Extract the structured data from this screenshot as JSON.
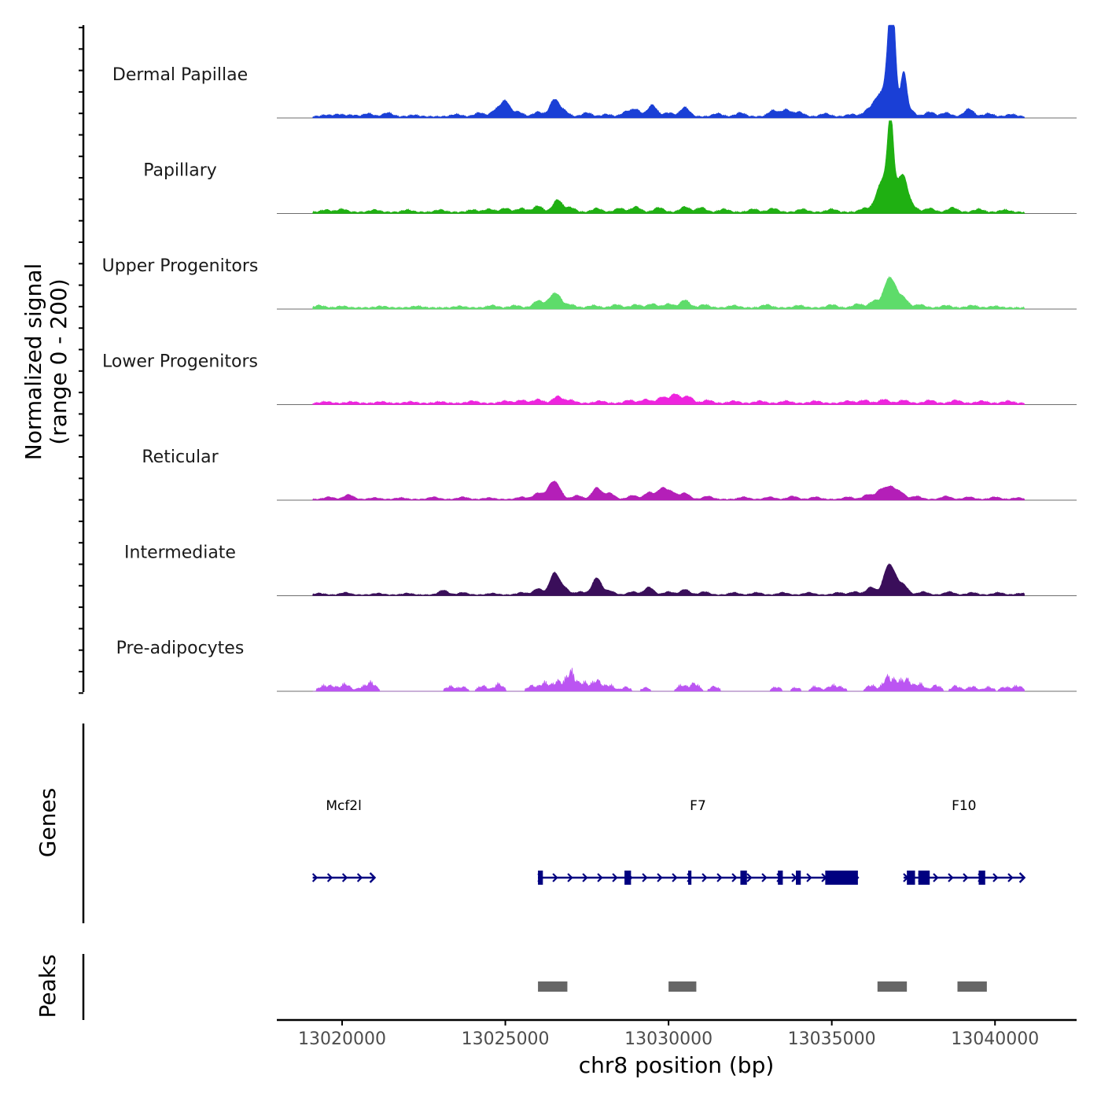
{
  "chart_data": {
    "type": "area",
    "title": "",
    "xlabel": "chr8 position (bp)",
    "ylabel": "Normalized signal\n(range 0 - 200)",
    "ylabel_lines": [
      "Normalized signal",
      "(range 0 - 200)"
    ],
    "xlim": [
      13018000,
      13042500
    ],
    "ylim": [
      0,
      200
    ],
    "x_ticks": [
      13020000,
      13025000,
      13030000,
      13035000,
      13040000
    ],
    "x_tick_labels": [
      "13020000",
      "13025000",
      "13030000",
      "13035000",
      "13040000"
    ],
    "signal_extent": [
      13019100,
      13040900
    ],
    "tracks": [
      {
        "name": "Dermal Papillae",
        "color": "#1a3fd6",
        "baseline": 3,
        "peaks": [
          [
            13019500,
            2
          ],
          [
            13019900,
            3
          ],
          [
            13020300,
            2
          ],
          [
            13020800,
            4
          ],
          [
            13021400,
            5
          ],
          [
            13022200,
            2
          ],
          [
            13023500,
            3
          ],
          [
            13024200,
            5
          ],
          [
            13024700,
            8
          ],
          [
            13025000,
            20
          ],
          [
            13025400,
            6
          ],
          [
            13026000,
            6
          ],
          [
            13026500,
            22
          ],
          [
            13026800,
            7
          ],
          [
            13027500,
            5
          ],
          [
            13028100,
            3
          ],
          [
            13028700,
            6
          ],
          [
            13029000,
            9
          ],
          [
            13029500,
            15
          ],
          [
            13030000,
            5
          ],
          [
            13030500,
            12
          ],
          [
            13031500,
            4
          ],
          [
            13032200,
            5
          ],
          [
            13033200,
            8
          ],
          [
            13033600,
            9
          ],
          [
            13034000,
            6
          ],
          [
            13034800,
            4
          ],
          [
            13035600,
            3
          ],
          [
            13036100,
            8
          ],
          [
            13036400,
            22
          ],
          [
            13036700,
            40
          ],
          [
            13036800,
            84
          ],
          [
            13036900,
            76
          ],
          [
            13037200,
            56
          ],
          [
            13037400,
            8
          ],
          [
            13038000,
            6
          ],
          [
            13038500,
            5
          ],
          [
            13039200,
            10
          ],
          [
            13039800,
            4
          ],
          [
            13040500,
            3
          ]
        ]
      },
      {
        "name": "Papillary",
        "color": "#1fb012",
        "baseline": 3,
        "peaks": [
          [
            13019500,
            3
          ],
          [
            13020000,
            4
          ],
          [
            13021000,
            3
          ],
          [
            13022000,
            3
          ],
          [
            13023000,
            3
          ],
          [
            13024000,
            3
          ],
          [
            13024500,
            4
          ],
          [
            13025000,
            5
          ],
          [
            13025500,
            5
          ],
          [
            13026000,
            8
          ],
          [
            13026600,
            16
          ],
          [
            13027000,
            6
          ],
          [
            13027800,
            5
          ],
          [
            13028500,
            5
          ],
          [
            13029000,
            7
          ],
          [
            13029700,
            6
          ],
          [
            13030500,
            7
          ],
          [
            13031000,
            6
          ],
          [
            13031700,
            4
          ],
          [
            13032600,
            4
          ],
          [
            13033200,
            5
          ],
          [
            13034100,
            4
          ],
          [
            13035000,
            4
          ],
          [
            13036000,
            5
          ],
          [
            13036400,
            16
          ],
          [
            13036600,
            35
          ],
          [
            13036800,
            110
          ],
          [
            13037000,
            20
          ],
          [
            13037200,
            40
          ],
          [
            13037500,
            6
          ],
          [
            13038000,
            5
          ],
          [
            13038700,
            6
          ],
          [
            13039500,
            4
          ],
          [
            13040300,
            3
          ]
        ]
      },
      {
        "name": "Upper Progenitors",
        "color": "#5edc6a",
        "baseline": 3,
        "peaks": [
          [
            13019300,
            3
          ],
          [
            13020000,
            2
          ],
          [
            13021200,
            2
          ],
          [
            13022300,
            2
          ],
          [
            13023600,
            2
          ],
          [
            13024600,
            3
          ],
          [
            13025300,
            3
          ],
          [
            13026000,
            9
          ],
          [
            13026400,
            10
          ],
          [
            13026600,
            14
          ],
          [
            13027000,
            4
          ],
          [
            13027700,
            3
          ],
          [
            13028400,
            4
          ],
          [
            13029000,
            4
          ],
          [
            13029500,
            5
          ],
          [
            13030000,
            5
          ],
          [
            13030500,
            10
          ],
          [
            13031100,
            4
          ],
          [
            13032000,
            3
          ],
          [
            13033000,
            4
          ],
          [
            13034000,
            3
          ],
          [
            13035000,
            4
          ],
          [
            13035800,
            5
          ],
          [
            13036300,
            9
          ],
          [
            13036700,
            28
          ],
          [
            13036900,
            22
          ],
          [
            13037200,
            12
          ],
          [
            13037700,
            4
          ],
          [
            13038500,
            3
          ],
          [
            13039300,
            3
          ],
          [
            13040000,
            2
          ]
        ]
      },
      {
        "name": "Lower Progenitors",
        "color": "#ee24de",
        "baseline": 3,
        "peaks": [
          [
            13019500,
            2
          ],
          [
            13020300,
            2
          ],
          [
            13021200,
            2
          ],
          [
            13022100,
            2
          ],
          [
            13023000,
            2
          ],
          [
            13024000,
            3
          ],
          [
            13025000,
            3
          ],
          [
            13025500,
            4
          ],
          [
            13026000,
            5
          ],
          [
            13026600,
            9
          ],
          [
            13027000,
            4
          ],
          [
            13027900,
            3
          ],
          [
            13028800,
            4
          ],
          [
            13029300,
            5
          ],
          [
            13029800,
            8
          ],
          [
            13030200,
            12
          ],
          [
            13030600,
            9
          ],
          [
            13031200,
            4
          ],
          [
            13032000,
            3
          ],
          [
            13032800,
            3
          ],
          [
            13033600,
            3
          ],
          [
            13034500,
            3
          ],
          [
            13035500,
            3
          ],
          [
            13036000,
            4
          ],
          [
            13036600,
            5
          ],
          [
            13037200,
            4
          ],
          [
            13038000,
            4
          ],
          [
            13038800,
            4
          ],
          [
            13039600,
            3
          ],
          [
            13040400,
            3
          ]
        ]
      },
      {
        "name": "Reticular",
        "color": "#b41fb8",
        "baseline": 2,
        "peaks": [
          [
            13019600,
            3
          ],
          [
            13020200,
            6
          ],
          [
            13021000,
            2
          ],
          [
            13021800,
            2
          ],
          [
            13022800,
            3
          ],
          [
            13023700,
            3
          ],
          [
            13024500,
            2
          ],
          [
            13025500,
            3
          ],
          [
            13026000,
            8
          ],
          [
            13026400,
            16
          ],
          [
            13026600,
            14
          ],
          [
            13027200,
            5
          ],
          [
            13027800,
            15
          ],
          [
            13028200,
            8
          ],
          [
            13028900,
            5
          ],
          [
            13029400,
            9
          ],
          [
            13029800,
            14
          ],
          [
            13030100,
            9
          ],
          [
            13030500,
            8
          ],
          [
            13031200,
            4
          ],
          [
            13032300,
            3
          ],
          [
            13033100,
            3
          ],
          [
            13033800,
            4
          ],
          [
            13034500,
            3
          ],
          [
            13035500,
            3
          ],
          [
            13036100,
            6
          ],
          [
            13036500,
            12
          ],
          [
            13036800,
            15
          ],
          [
            13037100,
            9
          ],
          [
            13037600,
            4
          ],
          [
            13038500,
            4
          ],
          [
            13039200,
            3
          ],
          [
            13040000,
            3
          ],
          [
            13040700,
            2
          ]
        ]
      },
      {
        "name": "Intermediate",
        "color": "#3a0e5a",
        "baseline": 2,
        "peaks": [
          [
            13019300,
            2
          ],
          [
            13020100,
            3
          ],
          [
            13021100,
            2
          ],
          [
            13022000,
            2
          ],
          [
            13023100,
            6
          ],
          [
            13023700,
            3
          ],
          [
            13024600,
            2
          ],
          [
            13025500,
            3
          ],
          [
            13026000,
            8
          ],
          [
            13026500,
            28
          ],
          [
            13026800,
            9
          ],
          [
            13027300,
            4
          ],
          [
            13027800,
            22
          ],
          [
            13028200,
            5
          ],
          [
            13028900,
            4
          ],
          [
            13029400,
            10
          ],
          [
            13030000,
            4
          ],
          [
            13030500,
            7
          ],
          [
            13031100,
            4
          ],
          [
            13032000,
            3
          ],
          [
            13032700,
            3
          ],
          [
            13033500,
            3
          ],
          [
            13034300,
            3
          ],
          [
            13035200,
            3
          ],
          [
            13035700,
            4
          ],
          [
            13036200,
            10
          ],
          [
            13036700,
            30
          ],
          [
            13036900,
            20
          ],
          [
            13037200,
            12
          ],
          [
            13037800,
            4
          ],
          [
            13038600,
            4
          ],
          [
            13039300,
            3
          ],
          [
            13040100,
            3
          ],
          [
            13040800,
            2
          ]
        ]
      },
      {
        "name": "Pre-adipocytes",
        "color": "#bb55f2",
        "baseline": 0,
        "peaks": [
          [
            13019400,
            8
          ],
          [
            13019700,
            8
          ],
          [
            13020100,
            12
          ],
          [
            13020600,
            6
          ],
          [
            13020900,
            14
          ],
          [
            13023300,
            8
          ],
          [
            13023700,
            7
          ],
          [
            13024300,
            9
          ],
          [
            13024800,
            12
          ],
          [
            13025800,
            9
          ],
          [
            13026200,
            14
          ],
          [
            13026600,
            16
          ],
          [
            13027000,
            32
          ],
          [
            13027400,
            14
          ],
          [
            13027800,
            18
          ],
          [
            13028200,
            10
          ],
          [
            13028700,
            7
          ],
          [
            13029300,
            6
          ],
          [
            13030400,
            10
          ],
          [
            13030800,
            13
          ],
          [
            13031400,
            8
          ],
          [
            13033300,
            7
          ],
          [
            13033900,
            6
          ],
          [
            13034500,
            8
          ],
          [
            13035000,
            9
          ],
          [
            13035300,
            6
          ],
          [
            13036200,
            10
          ],
          [
            13036700,
            22
          ],
          [
            13037000,
            14
          ],
          [
            13037300,
            18
          ],
          [
            13037700,
            12
          ],
          [
            13038200,
            10
          ],
          [
            13038800,
            9
          ],
          [
            13039300,
            8
          ],
          [
            13039800,
            7
          ],
          [
            13040300,
            7
          ],
          [
            13040700,
            9
          ]
        ]
      }
    ],
    "track_max_value": 120,
    "genes": [
      {
        "name": "Mcf2l",
        "start": 13019100,
        "end": 13021000,
        "strand": "+",
        "exons": []
      },
      {
        "name": "F7",
        "start": 13026000,
        "end": 13035800,
        "strand": "+",
        "exons": [
          [
            13026000,
            13026150
          ],
          [
            13028650,
            13028850
          ],
          [
            13030600,
            13030700
          ],
          [
            13032200,
            13032400
          ],
          [
            13033350,
            13033500
          ],
          [
            13033900,
            13034050
          ],
          [
            13034800,
            13035800
          ]
        ]
      },
      {
        "name": "F10",
        "start": 13037200,
        "end": 13040900,
        "strand": "+",
        "exons": [
          [
            13037300,
            13037550
          ],
          [
            13037650,
            13038000
          ],
          [
            13039500,
            13039700
          ]
        ]
      }
    ],
    "peaks": [
      {
        "start": 13026000,
        "end": 13026900
      },
      {
        "start": 13030000,
        "end": 13030850
      },
      {
        "start": 13036400,
        "end": 13037300
      },
      {
        "start": 13038850,
        "end": 13039750
      }
    ],
    "panel_titles": {
      "genes": "Genes",
      "peaks": "Peaks"
    }
  }
}
